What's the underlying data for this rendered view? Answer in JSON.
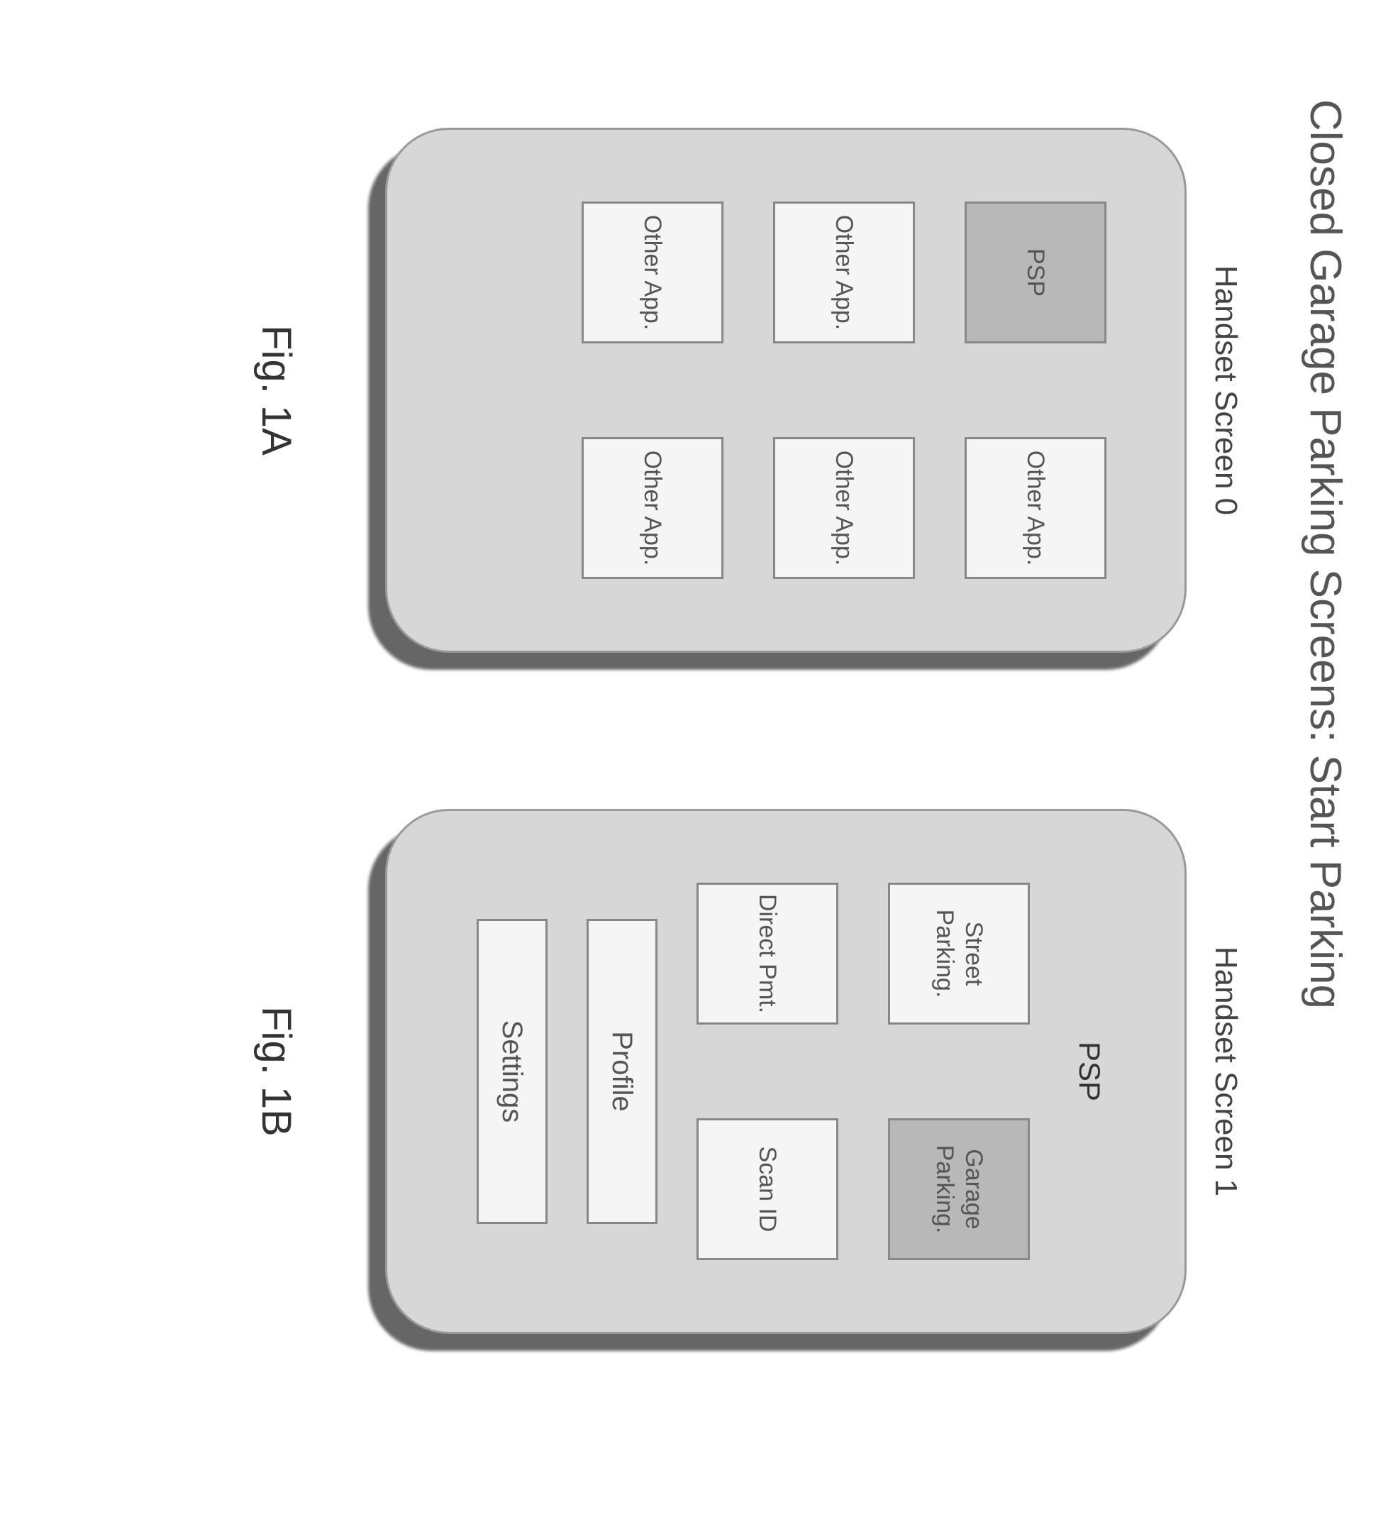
{
  "page_title": "Closed Garage Parking Screens: Start Parking",
  "screens": [
    {
      "label": "Handset Screen 0",
      "title": "",
      "icons": [
        {
          "label": "PSP",
          "highlighted": true
        },
        {
          "label": "Other App.",
          "highlighted": false
        },
        {
          "label": "Other App.",
          "highlighted": false
        },
        {
          "label": "Other App.",
          "highlighted": false
        },
        {
          "label": "Other App.",
          "highlighted": false
        },
        {
          "label": "Other App.",
          "highlighted": false
        }
      ],
      "full_buttons": [],
      "caption": "Fig. 1A"
    },
    {
      "label": "Handset Screen 1",
      "title": "PSP",
      "icons": [
        {
          "label": "Street Parking.",
          "highlighted": false
        },
        {
          "label": "Garage Parking.",
          "highlighted": true
        },
        {
          "label": "Direct Pmt.",
          "highlighted": false
        },
        {
          "label": "Scan ID",
          "highlighted": false
        }
      ],
      "full_buttons": [
        {
          "label": "Profile"
        },
        {
          "label": "Settings"
        }
      ],
      "caption": "Fig. 1B"
    }
  ],
  "colors": {
    "handset_body": "#d7d7d7",
    "handset_border": "#999999",
    "shadow": "#666666",
    "icon_light": "#f5f5f5",
    "icon_dark": "#b8b8b8",
    "icon_border": "#888888",
    "text": "#555555"
  }
}
